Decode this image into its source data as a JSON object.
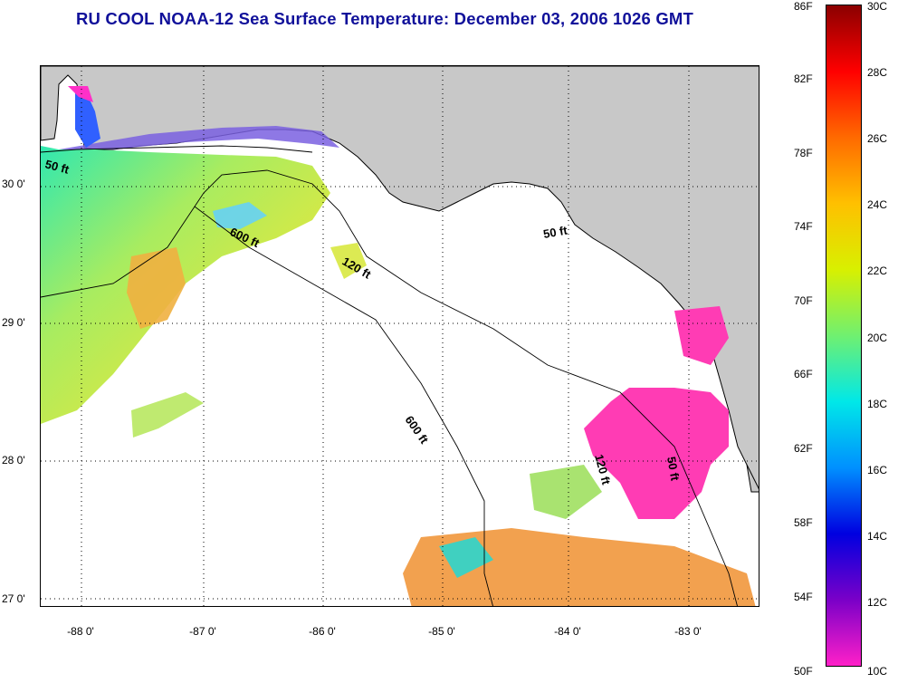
{
  "title": "RU COOL  NOAA-12  Sea Surface Temperature:  December 03, 2006 1026 GMT",
  "map": {
    "latitude_labels": [
      "30 0'",
      "29 0'",
      "28 0'",
      "27 0'"
    ],
    "longitude_labels": [
      "-88 0'",
      "-87 0'",
      "-86 0'",
      "-85 0'",
      "-84 0'",
      "-83 0'"
    ],
    "isobath_labels": [
      "50 ft",
      "600 ft",
      "120 ft",
      "50 ft",
      "600 ft",
      "120 ft",
      "50 ft"
    ],
    "colors": {
      "land": "#c8c8c8",
      "no_data_water": "#ffffff",
      "coastline": "#000000",
      "grid": "#000000"
    }
  },
  "colorbar": {
    "fahrenheit_labels": [
      "86F",
      "82F",
      "78F",
      "74F",
      "70F",
      "66F",
      "62F",
      "58F",
      "54F",
      "50F"
    ],
    "celsius_labels": [
      "30C",
      "28C",
      "26C",
      "24C",
      "22C",
      "20C",
      "18C",
      "16C",
      "14C",
      "12C",
      "10C"
    ],
    "gradient_colors": [
      "#8b0000",
      "#ff0000",
      "#ff6a00",
      "#ffc000",
      "#d8f000",
      "#70f070",
      "#00e8e8",
      "#0090ff",
      "#0000e0",
      "#7a00c8",
      "#ff20c8"
    ]
  }
}
